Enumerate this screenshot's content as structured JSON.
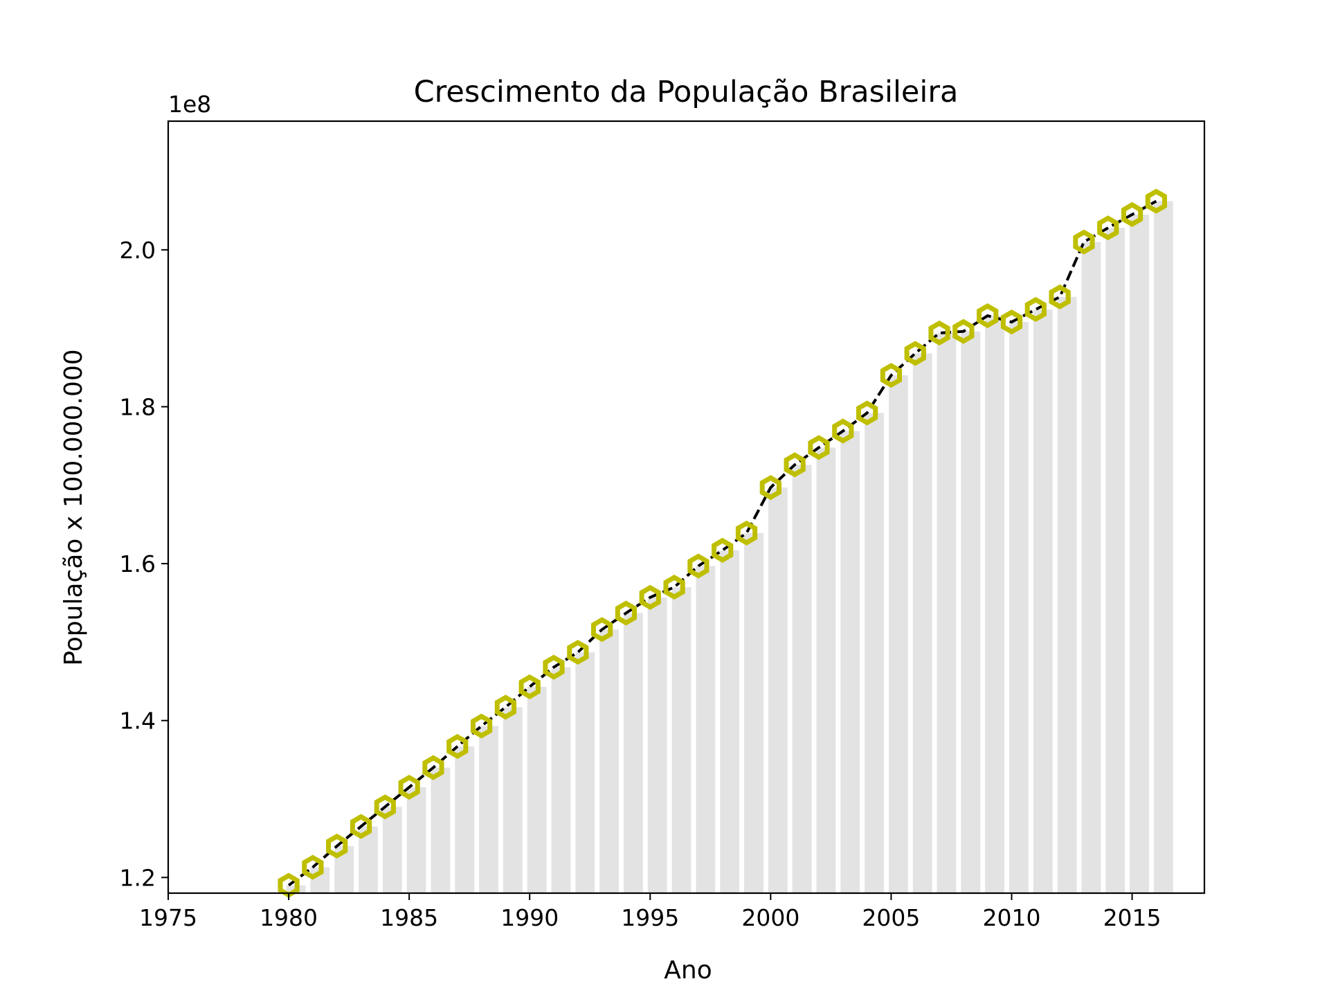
{
  "chart_data": {
    "type": "bar",
    "title": "Crescimento da População Brasileira",
    "xlabel": "Ano",
    "ylabel": "População x 100.000.000",
    "offset_text": "1e8",
    "xlim": [
      1975,
      2018
    ],
    "ylim": [
      1.18,
      2.164
    ],
    "xticks": [
      1975,
      1980,
      1985,
      1990,
      1995,
      2000,
      2005,
      2010,
      2015
    ],
    "xtick_labels": [
      "1975",
      "1980",
      "1985",
      "1990",
      "1995",
      "2000",
      "2005",
      "2010",
      "2015"
    ],
    "yticks": [
      1.2,
      1.4,
      1.6,
      1.8,
      2.0
    ],
    "ytick_labels": [
      "1.2",
      "1.4",
      "1.6",
      "1.8",
      "2.0"
    ],
    "grid": false,
    "colors": {
      "bar": "#e3e3e3",
      "line": "#000000",
      "marker": "#bfbf00"
    },
    "x": [
      1980,
      1981,
      1982,
      1983,
      1984,
      1985,
      1986,
      1987,
      1988,
      1989,
      1990,
      1991,
      1992,
      1993,
      1994,
      1995,
      1996,
      1997,
      1998,
      1999,
      2000,
      2001,
      2002,
      2003,
      2004,
      2005,
      2006,
      2007,
      2008,
      2009,
      2010,
      2011,
      2012,
      2013,
      2014,
      2015,
      2016
    ],
    "values": [
      1.19,
      1.213,
      1.24,
      1.265,
      1.29,
      1.315,
      1.34,
      1.367,
      1.393,
      1.417,
      1.443,
      1.468,
      1.487,
      1.516,
      1.537,
      1.557,
      1.57,
      1.597,
      1.617,
      1.639,
      1.697,
      1.726,
      1.748,
      1.769,
      1.792,
      1.84,
      1.868,
      1.894,
      1.896,
      1.916,
      1.908,
      1.924,
      1.94,
      2.01,
      2.028,
      2.045,
      2.062
    ]
  }
}
